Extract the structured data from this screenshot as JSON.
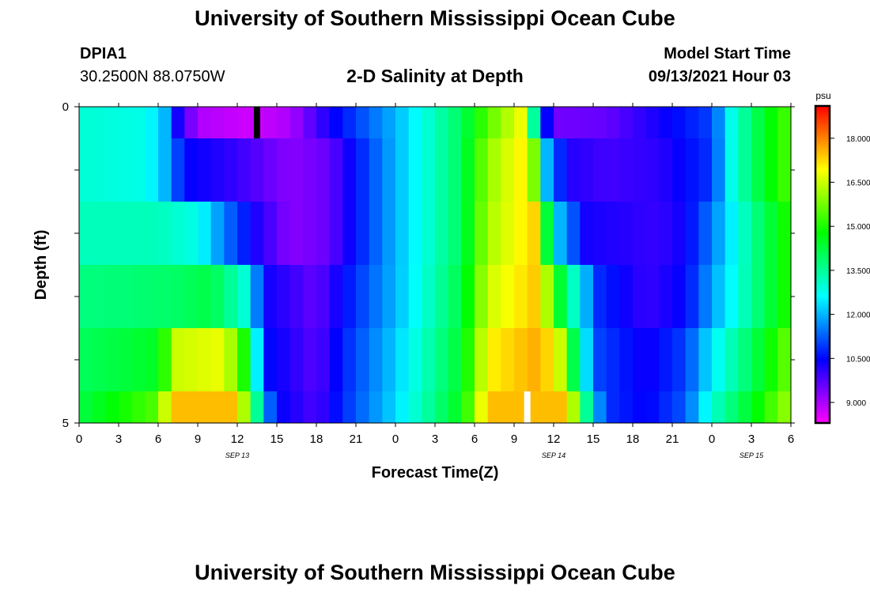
{
  "header": {
    "title": "University of Southern Mississippi Ocean Cube",
    "station_id": "DPIA1",
    "station_coords": "30.2500N  88.0750W",
    "plot_title": "2-D Salinity at Depth",
    "model_start_label": "Model Start Time",
    "model_start_value": "09/13/2021 Hour 03"
  },
  "footer": {
    "title": "University of Southern Mississippi Ocean Cube"
  },
  "chart_data": {
    "type": "heatmap",
    "title": "2-D Salinity at Depth",
    "xlabel": "Forecast Time(Z)",
    "ylabel": "Depth (ft)",
    "colorbar_unit": "psu",
    "x_tick_labels": [
      "0",
      "3",
      "6",
      "9",
      "12",
      "15",
      "18",
      "21",
      "0",
      "3",
      "6",
      "9",
      "12",
      "15",
      "18",
      "21",
      "0",
      "3",
      "6"
    ],
    "x_range_hours": [
      0,
      54
    ],
    "date_labels": [
      {
        "label": "SEP 13",
        "hour": 12
      },
      {
        "label": "SEP 14",
        "hour": 36
      },
      {
        "label": "SEP 15",
        "hour": 51
      }
    ],
    "y_range": [
      0,
      5
    ],
    "y_tick_labels": [
      {
        "label": "0",
        "value": 0
      },
      {
        "label": "",
        "value": 1
      },
      {
        "label": "",
        "value": 2
      },
      {
        "label": "",
        "value": 3
      },
      {
        "label": "",
        "value": 4
      },
      {
        "label": "5",
        "value": 5
      }
    ],
    "colorbar_range": [
      8.3,
      19.1
    ],
    "colorbar_ticks": [
      "9.000",
      "10.500",
      "12.000",
      "13.500",
      "15.000",
      "16.500",
      "18.000"
    ],
    "colorbar_tick_values": [
      9.0,
      10.5,
      12.0,
      13.5,
      15.0,
      16.5,
      18.0
    ],
    "depth_layers": [
      {
        "depth_range": [
          0.0,
          0.5
        ],
        "knots": [
          [
            0,
            13.0
          ],
          [
            5,
            12.8
          ],
          [
            6.5,
            12.0
          ],
          [
            7.5,
            10.3
          ],
          [
            9,
            9.0
          ],
          [
            13,
            8.7
          ],
          [
            16,
            9.0
          ],
          [
            19,
            10.3
          ],
          [
            24,
            12.0
          ],
          [
            29,
            14.0
          ],
          [
            31,
            15.5
          ],
          [
            33.5,
            16.8
          ],
          [
            34.2,
            14.5
          ],
          [
            35.2,
            11.0
          ],
          [
            36,
            9.5
          ],
          [
            40,
            9.6
          ],
          [
            44,
            10.3
          ],
          [
            48,
            11.0
          ],
          [
            49.5,
            12.8
          ],
          [
            52,
            14.5
          ],
          [
            54,
            15.5
          ]
        ]
      },
      {
        "depth_range": [
          0.5,
          1.5
        ],
        "knots": [
          [
            0,
            13.0
          ],
          [
            5,
            12.8
          ],
          [
            6.5,
            12.0
          ],
          [
            8,
            10.5
          ],
          [
            12,
            10.0
          ],
          [
            16,
            9.3
          ],
          [
            19,
            9.6
          ],
          [
            21,
            10.6
          ],
          [
            24,
            12.0
          ],
          [
            29,
            14.0
          ],
          [
            31,
            16.0
          ],
          [
            34,
            17.2
          ],
          [
            34.8,
            15.0
          ],
          [
            35.5,
            12.0
          ],
          [
            37,
            10.2
          ],
          [
            40,
            9.9
          ],
          [
            44,
            10.1
          ],
          [
            48,
            10.9
          ],
          [
            49.5,
            12.8
          ],
          [
            52,
            14.5
          ],
          [
            54,
            15.5
          ]
        ]
      },
      {
        "depth_range": [
          1.5,
          2.5
        ],
        "knots": [
          [
            0,
            13.2
          ],
          [
            6,
            13.2
          ],
          [
            9,
            12.8
          ],
          [
            11,
            11.5
          ],
          [
            13.5,
            10.2
          ],
          [
            16,
            9.3
          ],
          [
            19,
            9.6
          ],
          [
            21,
            10.6
          ],
          [
            24,
            12.0
          ],
          [
            29,
            14.0
          ],
          [
            31,
            16.2
          ],
          [
            34.5,
            17.3
          ],
          [
            35.2,
            15.0
          ],
          [
            36.5,
            12.0
          ],
          [
            38.5,
            10.3
          ],
          [
            44,
            10.0
          ],
          [
            46,
            10.4
          ],
          [
            48,
            11.5
          ],
          [
            51,
            13.5
          ],
          [
            54,
            15.2
          ]
        ]
      },
      {
        "depth_range": [
          2.5,
          3.5
        ],
        "knots": [
          [
            0,
            13.7
          ],
          [
            7,
            13.9
          ],
          [
            10,
            14.2
          ],
          [
            12.5,
            13.0
          ],
          [
            13.5,
            11.5
          ],
          [
            14.5,
            10.3
          ],
          [
            18,
            9.6
          ],
          [
            20,
            10.5
          ],
          [
            24,
            12.0
          ],
          [
            29,
            14.2
          ],
          [
            31,
            16.5
          ],
          [
            35,
            17.5
          ],
          [
            36,
            15.0
          ],
          [
            38,
            12.5
          ],
          [
            39.5,
            10.8
          ],
          [
            43,
            10.0
          ],
          [
            46,
            10.5
          ],
          [
            48,
            11.8
          ],
          [
            51,
            13.5
          ],
          [
            54,
            15.2
          ]
        ]
      },
      {
        "depth_range": [
          3.5,
          4.5
        ],
        "knots": [
          [
            0,
            14.0
          ],
          [
            6,
            14.5
          ],
          [
            7.5,
            16.5
          ],
          [
            11,
            16.8
          ],
          [
            12.5,
            15.0
          ],
          [
            13.5,
            12.5
          ],
          [
            14.5,
            10.5
          ],
          [
            18,
            9.7
          ],
          [
            20,
            10.7
          ],
          [
            24,
            12.2
          ],
          [
            29,
            14.4
          ],
          [
            31,
            17.0
          ],
          [
            35,
            17.7
          ],
          [
            36.5,
            16.5
          ],
          [
            38,
            13.0
          ],
          [
            39.5,
            11.0
          ],
          [
            43,
            10.3
          ],
          [
            46,
            11.0
          ],
          [
            48,
            12.5
          ],
          [
            51,
            14.0
          ],
          [
            54,
            15.8
          ]
        ]
      },
      {
        "depth_range": [
          4.5,
          5.0
        ],
        "knots": [
          [
            0,
            14.2
          ],
          [
            6,
            15.5
          ],
          [
            7,
            17.5
          ],
          [
            12,
            17.5
          ],
          [
            13,
            15.0
          ],
          [
            14,
            12.0
          ],
          [
            15,
            10.5
          ],
          [
            18,
            9.8
          ],
          [
            20,
            10.8
          ],
          [
            24,
            12.3
          ],
          [
            29,
            14.6
          ],
          [
            31,
            17.5
          ],
          [
            37,
            17.5
          ],
          [
            38,
            15.0
          ],
          [
            39,
            12.0
          ],
          [
            40.5,
            10.8
          ],
          [
            43,
            10.4
          ],
          [
            46,
            11.2
          ],
          [
            48,
            13.0
          ],
          [
            51,
            14.5
          ],
          [
            54,
            16.2
          ]
        ]
      }
    ],
    "missing_cells": [
      {
        "hour": 13.5,
        "depth_range": [
          0.0,
          0.5
        ],
        "color": "#000000"
      },
      {
        "hour": 34,
        "depth_range": [
          4.5,
          5.0
        ],
        "color": "#ffffff"
      }
    ]
  }
}
